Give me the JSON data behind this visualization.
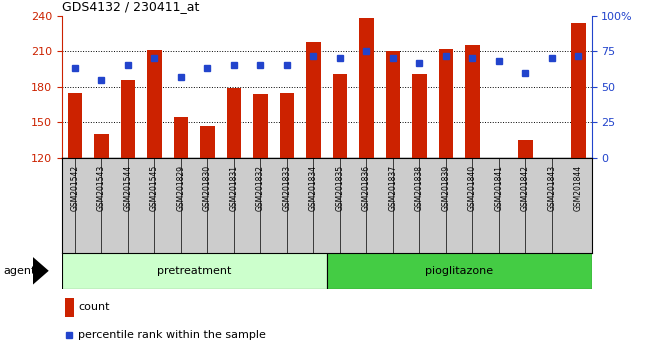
{
  "title": "GDS4132 / 230411_at",
  "samples": [
    "GSM201542",
    "GSM201543",
    "GSM201544",
    "GSM201545",
    "GSM201829",
    "GSM201830",
    "GSM201831",
    "GSM201832",
    "GSM201833",
    "GSM201834",
    "GSM201835",
    "GSM201836",
    "GSM201837",
    "GSM201838",
    "GSM201839",
    "GSM201840",
    "GSM201841",
    "GSM201842",
    "GSM201843",
    "GSM201844"
  ],
  "counts": [
    175,
    140,
    186,
    211,
    154,
    147,
    179,
    174,
    175,
    218,
    191,
    238,
    210,
    191,
    212,
    215,
    120,
    135,
    120,
    234
  ],
  "percentiles": [
    63,
    55,
    65,
    70,
    57,
    63,
    65,
    65,
    65,
    72,
    70,
    75,
    70,
    67,
    72,
    70,
    68,
    60,
    70,
    72
  ],
  "ylim_left": [
    120,
    240
  ],
  "ylim_right": [
    0,
    100
  ],
  "yticks_left": [
    120,
    150,
    180,
    210,
    240
  ],
  "yticks_right": [
    0,
    25,
    50,
    75,
    100
  ],
  "bar_color": "#cc2200",
  "dot_color": "#2244cc",
  "pretreatment_n": 10,
  "pioglitazone_n": 10,
  "pretreatment_color": "#ccffcc",
  "pioglitazone_color": "#44cc44",
  "sample_bg_color": "#cccccc",
  "agent_label": "agent",
  "pretreatment_label": "pretreatment",
  "pioglitazone_label": "pioglitazone",
  "legend_count": "count",
  "legend_percentile": "percentile rank within the sample",
  "plot_background": "#ffffff",
  "right_tick_label_100": "100%",
  "bar_width": 0.55
}
